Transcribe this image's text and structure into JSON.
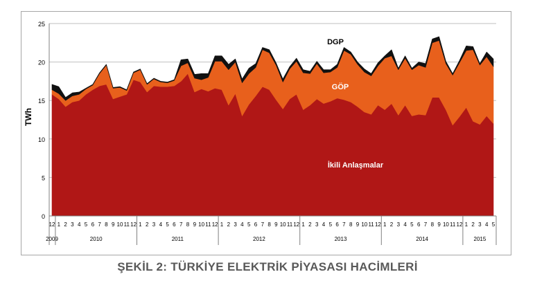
{
  "caption": "ŞEKİL 2: TÜRKİYE ELEKTRİK PİYASASI HACİMLERİ",
  "chart_data": {
    "type": "area",
    "stacked": true,
    "ylabel": "TWh",
    "ylim": [
      0,
      25
    ],
    "yticks": [
      0,
      5,
      10,
      15,
      20,
      25
    ],
    "grid": "horizontal",
    "month_labels": [
      "12",
      "1",
      "2",
      "3",
      "4",
      "5",
      "6",
      "7",
      "8",
      "9",
      "10",
      "11",
      "12",
      "1",
      "2",
      "3",
      "4",
      "5",
      "6",
      "7",
      "8",
      "9",
      "10",
      "11",
      "12",
      "1",
      "2",
      "3",
      "4",
      "5",
      "6",
      "7",
      "8",
      "9",
      "10",
      "11",
      "12",
      "1",
      "2",
      "3",
      "4",
      "5",
      "6",
      "7",
      "8",
      "9",
      "10",
      "11",
      "12",
      "1",
      "2",
      "3",
      "4",
      "5",
      "6",
      "7",
      "8",
      "9",
      "10",
      "11",
      "12",
      "1",
      "2",
      "3",
      "4",
      "5"
    ],
    "years": [
      {
        "label": "2009",
        "start": 0,
        "count": 1
      },
      {
        "label": "2010",
        "start": 1,
        "count": 12
      },
      {
        "label": "2011",
        "start": 13,
        "count": 12
      },
      {
        "label": "2012",
        "start": 25,
        "count": 12
      },
      {
        "label": "2013",
        "start": 37,
        "count": 12
      },
      {
        "label": "2014",
        "start": 49,
        "count": 12
      },
      {
        "label": "2015",
        "start": 61,
        "count": 5
      }
    ],
    "series": [
      {
        "name": "İkili Anlaşmalar",
        "color": "#b01716",
        "values": [
          15.8,
          15.2,
          14.2,
          14.8,
          15.0,
          15.8,
          16.4,
          16.9,
          17.1,
          15.2,
          15.5,
          15.8,
          17.7,
          17.4,
          16.1,
          16.9,
          16.8,
          16.8,
          16.9,
          17.5,
          18.5,
          16.1,
          16.5,
          16.2,
          16.6,
          16.4,
          14.4,
          15.9,
          13.0,
          14.5,
          15.6,
          16.8,
          16.4,
          15.1,
          13.9,
          15.2,
          15.8,
          13.8,
          14.4,
          15.2,
          14.6,
          14.9,
          15.3,
          15.1,
          14.8,
          14.2,
          13.5,
          13.2,
          14.4,
          13.8,
          14.6,
          13.1,
          14.4,
          13.0,
          13.2,
          13.1,
          15.4,
          15.4,
          13.8,
          11.8,
          12.9,
          14.1,
          12.3,
          11.9,
          13.0,
          12.0,
          12.8
        ]
      },
      {
        "name": "GÖP",
        "color": "#e8601c",
        "values": [
          0.6,
          0.7,
          0.8,
          0.8,
          0.8,
          0.7,
          0.6,
          1.6,
          2.5,
          1.4,
          1.2,
          0.5,
          0.9,
          1.6,
          1.0,
          0.9,
          0.6,
          0.5,
          0.7,
          2.0,
          1.4,
          1.8,
          1.2,
          1.8,
          3.5,
          3.7,
          4.6,
          4.1,
          4.3,
          4.0,
          3.7,
          4.8,
          4.8,
          4.5,
          3.5,
          3.9,
          4.3,
          4.8,
          4.1,
          4.6,
          4.0,
          3.8,
          4.0,
          6.4,
          6.2,
          5.5,
          5.2,
          5.0,
          5.1,
          6.7,
          6.2,
          5.9,
          6.1,
          6.0,
          6.4,
          6.2,
          7.1,
          7.4,
          6.0,
          6.5,
          7.0,
          7.4,
          9.3,
          7.7,
          7.7,
          7.4,
          7.6
        ]
      },
      {
        "name": "DGP",
        "color": "#111111",
        "values": [
          0.7,
          0.9,
          0.4,
          0.4,
          0.3,
          0.1,
          0.1,
          0.1,
          0.1,
          0.1,
          0.1,
          0.1,
          0.1,
          0.1,
          0.1,
          0.1,
          0.1,
          0.1,
          0.1,
          0.8,
          0.5,
          0.5,
          0.8,
          0.5,
          0.7,
          0.7,
          0.7,
          0.4,
          0.5,
          0.7,
          0.5,
          0.3,
          0.4,
          0.3,
          0.4,
          0.3,
          0.4,
          0.4,
          0.3,
          0.3,
          0.4,
          0.3,
          0.4,
          0.4,
          0.3,
          0.3,
          0.4,
          0.3,
          0.4,
          0.3,
          0.8,
          0.2,
          0.3,
          0.2,
          0.4,
          0.5,
          0.5,
          0.5,
          0.3,
          0.2,
          0.3,
          0.6,
          0.4,
          0.2,
          0.6,
          1.0,
          0.5
        ]
      }
    ],
    "annotations": [
      "DGP",
      "GÖP",
      "İkili Anlaşmalar"
    ]
  }
}
